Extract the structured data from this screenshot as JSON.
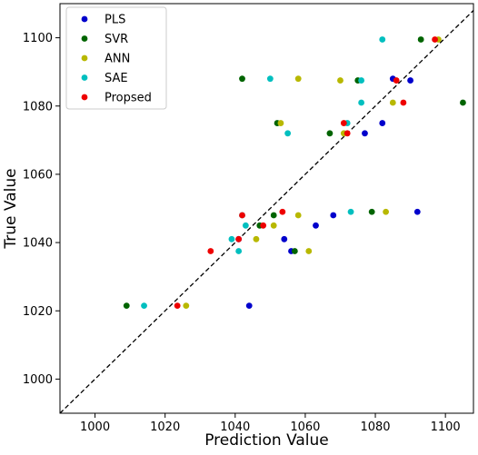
{
  "chart_data": {
    "type": "scatter",
    "xlabel": "Prediction Value",
    "ylabel": "True Value",
    "xlim": [
      990,
      1108
    ],
    "ylim": [
      990,
      1110
    ],
    "xticks": [
      1000,
      1020,
      1040,
      1060,
      1080,
      1100
    ],
    "yticks": [
      1000,
      1020,
      1040,
      1060,
      1080,
      1100
    ],
    "grid": false,
    "legend_position": "top-left",
    "reference_line": {
      "style": "dashed",
      "color": "#000000",
      "from": [
        990,
        990
      ],
      "to": [
        1108,
        1108
      ]
    },
    "series": [
      {
        "name": "PLS",
        "color": "#0000cc",
        "points": [
          [
            1044,
            1021.5
          ],
          [
            1041,
            1041
          ],
          [
            1054,
            1041
          ],
          [
            1056,
            1037.5
          ],
          [
            1063,
            1045
          ],
          [
            1068,
            1048
          ],
          [
            1077,
            1072
          ],
          [
            1082,
            1075
          ],
          [
            1085,
            1088
          ],
          [
            1090,
            1087.5
          ],
          [
            1092,
            1049
          ]
        ]
      },
      {
        "name": "SVR",
        "color": "#006400",
        "points": [
          [
            1009,
            1021.5
          ],
          [
            1042,
            1088
          ],
          [
            1047,
            1045
          ],
          [
            1051,
            1048
          ],
          [
            1052,
            1075
          ],
          [
            1057,
            1037.5
          ],
          [
            1067,
            1072
          ],
          [
            1075,
            1087.5
          ],
          [
            1079,
            1049
          ],
          [
            1093,
            1099.5
          ],
          [
            1105,
            1081
          ]
        ]
      },
      {
        "name": "ANN",
        "color": "#b8b800",
        "points": [
          [
            1026,
            1021.5
          ],
          [
            1046,
            1041
          ],
          [
            1051,
            1045
          ],
          [
            1053,
            1075
          ],
          [
            1058,
            1048
          ],
          [
            1058,
            1088
          ],
          [
            1061,
            1037.5
          ],
          [
            1070,
            1087.5
          ],
          [
            1071,
            1072
          ],
          [
            1083,
            1049
          ],
          [
            1085,
            1081
          ],
          [
            1098,
            1099.5
          ]
        ]
      },
      {
        "name": "SAE",
        "color": "#00bfbf",
        "points": [
          [
            1014,
            1021.5
          ],
          [
            1039,
            1041
          ],
          [
            1041,
            1037.5
          ],
          [
            1042,
            1048
          ],
          [
            1043,
            1045
          ],
          [
            1050,
            1088
          ],
          [
            1055,
            1072
          ],
          [
            1072,
            1075
          ],
          [
            1073,
            1049
          ],
          [
            1076,
            1081
          ],
          [
            1076,
            1087.5
          ],
          [
            1082,
            1099.5
          ]
        ]
      },
      {
        "name": "Propsed",
        "color": "#ee0000",
        "points": [
          [
            1023.5,
            1021.5
          ],
          [
            1033,
            1037.5
          ],
          [
            1041,
            1041
          ],
          [
            1042,
            1048
          ],
          [
            1048,
            1045
          ],
          [
            1053.5,
            1049
          ],
          [
            1071,
            1075
          ],
          [
            1072,
            1072
          ],
          [
            1086,
            1087.5
          ],
          [
            1088,
            1081
          ],
          [
            1097,
            1099.5
          ]
        ]
      }
    ]
  }
}
